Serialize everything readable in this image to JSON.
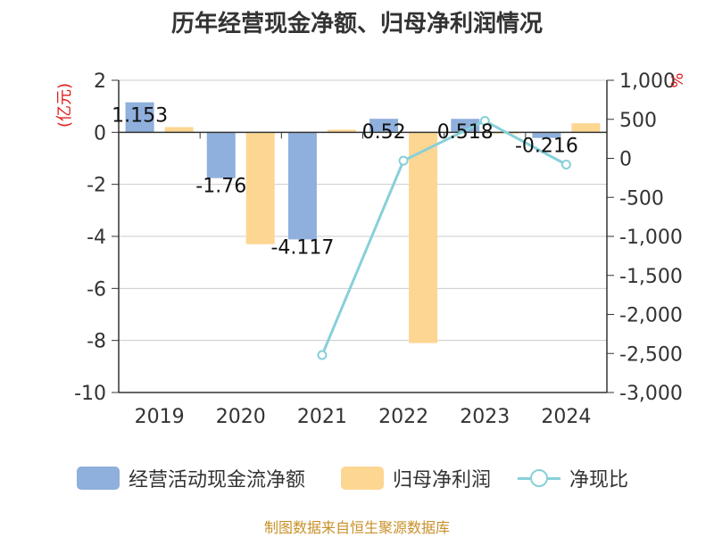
{
  "title": "历年经营现金净额、归母净利润情况",
  "source_note": "制图数据来自恒生聚源数据库",
  "colors": {
    "cashflow": "#8fafdc",
    "profit": "#fdd692",
    "ratio": "#88d0d8",
    "unit": "#e02020",
    "source": "#c8902a"
  },
  "chart_data": {
    "type": "bar",
    "categories": [
      "2019",
      "2020",
      "2021",
      "2022",
      "2023",
      "2024"
    ],
    "left_axis": {
      "label": "(亿元)",
      "range": [
        -10,
        2
      ],
      "ticks": [
        "2",
        "0",
        "-2",
        "-4",
        "-6",
        "-8",
        "-10"
      ],
      "tick_values": [
        2,
        0,
        -2,
        -4,
        -6,
        -8,
        -10
      ]
    },
    "right_axis": {
      "label": "%",
      "range": [
        -3000,
        1000
      ],
      "ticks": [
        "1,000",
        "500",
        "0",
        "-500",
        "-1,000",
        "-1,500",
        "-2,000",
        "-2,500",
        "-3,000"
      ],
      "tick_values": [
        1000,
        500,
        0,
        -500,
        -1000,
        -1500,
        -2000,
        -2500,
        -3000
      ]
    },
    "series": [
      {
        "name": "经营活动现金流净额",
        "type": "bar",
        "axis": "left",
        "values": [
          1.153,
          -1.76,
          -4.117,
          0.52,
          0.518,
          -0.216
        ],
        "labels": [
          "1.153",
          "-1.76",
          "-4.117",
          "0.52",
          "0.518",
          "-0.216"
        ]
      },
      {
        "name": "归母净利润",
        "type": "bar",
        "axis": "left",
        "values": [
          0.2,
          -4.3,
          0.1,
          -8.1,
          -0.05,
          0.35
        ]
      },
      {
        "name": "净现比",
        "type": "line",
        "axis": "right",
        "values": [
          null,
          null,
          -2520,
          -30,
          480,
          -80
        ]
      }
    ],
    "legend_position": "bottom",
    "grid": true
  }
}
